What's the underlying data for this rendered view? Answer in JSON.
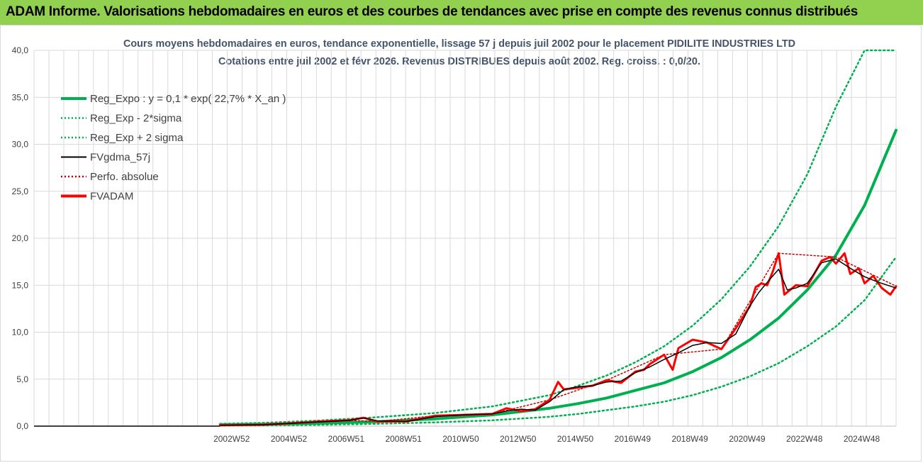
{
  "header": {
    "title": "ADAM Informe. Valorisations hebdomadaires en euros et des courbes de tendances avec prise en compte des revenus connus distribués"
  },
  "colors": {
    "header_bg": "#92d050",
    "reg": "#00b050",
    "gdma": "#000000",
    "perfo": "#c00000",
    "fvadam": "#ff0000",
    "grid": "#d9d9d9"
  },
  "chart_data": {
    "type": "line",
    "title_line1": "Cours moyens hebdomadaires en euros, tendance exponentielle, lissage 57 j depuis juil 2002 pour le placement PIDILITE INDUSTRIES LTD",
    "title_line2": "Cotations entre juil 2002 et févr 2026.  Revenus DISTRIBUES depuis août 2002. Reg. croiss. : 0,0/20.",
    "ylim": [
      0,
      40
    ],
    "y_ticks": [
      "0,0",
      "5,0",
      "10,0",
      "15,0",
      "20,0",
      "25,0",
      "30,0",
      "35,0",
      "40,0"
    ],
    "x_ticks": [
      "2002W52",
      "2004W52",
      "2006W51",
      "2008W51",
      "2010W50",
      "2012W50",
      "2014W50",
      "2016W49",
      "2018W49",
      "2020W49",
      "2022W48",
      "2024W48"
    ],
    "grid": true,
    "legend_position": "top-left",
    "legend": [
      {
        "label": "Reg_Expo : y = 0,1 * exp( 22,7% *  X_an )",
        "color": "#00b050",
        "style": "solid-thick"
      },
      {
        "label": "Reg_Exp - 2*sigma",
        "color": "#00b050",
        "style": "dotted"
      },
      {
        "label": "Reg_Exp + 2 sigma",
        "color": "#00b050",
        "style": "dotted"
      },
      {
        "label": "FVgdma_57j",
        "color": "#000000",
        "style": "solid"
      },
      {
        "label": "Perfo. absolue",
        "color": "#c00000",
        "style": "dotted"
      },
      {
        "label": "FVADAM",
        "color": "#ff0000",
        "style": "solid-thick"
      }
    ],
    "series": [
      {
        "name": "Reg_Expo : y = 0,1 * exp( 22,7% *  X_an )",
        "x": [
          2002.5,
          2004,
          2006,
          2008,
          2010,
          2012,
          2014,
          2015,
          2016,
          2017,
          2018,
          2019,
          2020,
          2021,
          2022,
          2023,
          2024,
          2025,
          2026.1
        ],
        "values": [
          0.15,
          0.2,
          0.32,
          0.48,
          0.78,
          1.2,
          1.9,
          2.4,
          3.0,
          3.8,
          4.6,
          5.8,
          7.3,
          9.2,
          11.5,
          14.5,
          18.2,
          23.5,
          31.5
        ]
      },
      {
        "name": "Reg_Exp - 2*sigma",
        "x": [
          2002.5,
          2004,
          2006,
          2008,
          2010,
          2012,
          2014,
          2015,
          2016,
          2017,
          2018,
          2019,
          2020,
          2021,
          2022,
          2023,
          2024,
          2025,
          2026.1
        ],
        "values": [
          0.05,
          0.08,
          0.14,
          0.25,
          0.4,
          0.62,
          1.0,
          1.3,
          1.7,
          2.1,
          2.6,
          3.3,
          4.2,
          5.3,
          6.7,
          8.5,
          10.6,
          13.4,
          18.0
        ]
      },
      {
        "name": "Reg_Exp + 2 sigma",
        "x": [
          2002.5,
          2004,
          2006,
          2008,
          2010,
          2012,
          2014,
          2015,
          2016,
          2017,
          2018,
          2019,
          2020,
          2021,
          2022,
          2023,
          2024,
          2025,
          2026.1
        ],
        "values": [
          0.25,
          0.35,
          0.6,
          0.95,
          1.4,
          2.1,
          3.3,
          4.3,
          5.4,
          6.8,
          8.5,
          10.7,
          13.5,
          17.0,
          21.3,
          26.8,
          34.0,
          40.0,
          40.0
        ]
      },
      {
        "name": "FVgdma_57j",
        "x": [
          2002.5,
          2004,
          2005,
          2006,
          2007,
          2007.5,
          2008,
          2009,
          2010,
          2011,
          2012,
          2012.5,
          2013,
          2013.5,
          2014,
          2014.5,
          2015,
          2015.5,
          2016,
          2016.5,
          2017,
          2017.5,
          2018,
          2018.5,
          2019,
          2019.5,
          2020,
          2020.5,
          2021,
          2021.3,
          2021.6,
          2022,
          2022.3,
          2022.6,
          2023,
          2023.5,
          2024,
          2024.5,
          2025,
          2025.5,
          2026.1
        ],
        "values": [
          0.1,
          0.15,
          0.3,
          0.45,
          0.6,
          0.85,
          0.55,
          0.5,
          1.0,
          1.2,
          1.3,
          1.6,
          1.8,
          1.7,
          2.6,
          3.9,
          4.2,
          4.3,
          4.7,
          4.8,
          5.7,
          6.3,
          7.1,
          7.8,
          8.6,
          8.9,
          8.8,
          9.8,
          12.8,
          14.2,
          15.3,
          16.7,
          14.5,
          14.7,
          15.2,
          17.4,
          17.8,
          16.8,
          15.9,
          15.3,
          14.7
        ]
      },
      {
        "name": "FVADAM",
        "x": [
          2002.5,
          2004,
          2005,
          2006,
          2007,
          2007.5,
          2008,
          2009,
          2010,
          2011,
          2012,
          2012.5,
          2013,
          2013.5,
          2014,
          2014.3,
          2014.5,
          2015,
          2015.5,
          2016,
          2016.5,
          2017,
          2017.3,
          2017.5,
          2018,
          2018.3,
          2018.5,
          2019,
          2019.5,
          2020,
          2020.5,
          2021,
          2021.2,
          2021.4,
          2021.6,
          2021.8,
          2022,
          2022.2,
          2022.4,
          2022.6,
          2023,
          2023.5,
          2023.8,
          2024,
          2024.3,
          2024.5,
          2024.8,
          2025,
          2025.3,
          2025.6,
          2025.9,
          2026.1
        ],
        "values": [
          0.1,
          0.15,
          0.32,
          0.5,
          0.62,
          0.9,
          0.5,
          0.5,
          1.1,
          1.2,
          1.3,
          1.9,
          1.6,
          1.8,
          2.8,
          4.7,
          3.9,
          4.1,
          4.3,
          4.9,
          4.6,
          5.8,
          6.0,
          6.6,
          7.6,
          6.0,
          8.3,
          9.2,
          8.9,
          8.2,
          10.4,
          12.8,
          14.8,
          15.2,
          15.0,
          16.5,
          18.4,
          14.0,
          14.5,
          15.0,
          14.9,
          17.6,
          18.0,
          17.3,
          18.4,
          16.2,
          16.8,
          15.2,
          16.0,
          14.7,
          14.0,
          14.9
        ]
      },
      {
        "name": "Perfo. absolue",
        "x": [
          2002.5,
          2004,
          2005,
          2006,
          2007,
          2008,
          2010,
          2012,
          2014,
          2016,
          2018,
          2020,
          2022,
          2024,
          2026.1
        ],
        "values": [
          0.1,
          0.15,
          0.32,
          0.5,
          0.62,
          0.5,
          1.1,
          1.3,
          2.8,
          4.9,
          7.6,
          8.2,
          18.4,
          18.0,
          14.9
        ]
      }
    ]
  }
}
